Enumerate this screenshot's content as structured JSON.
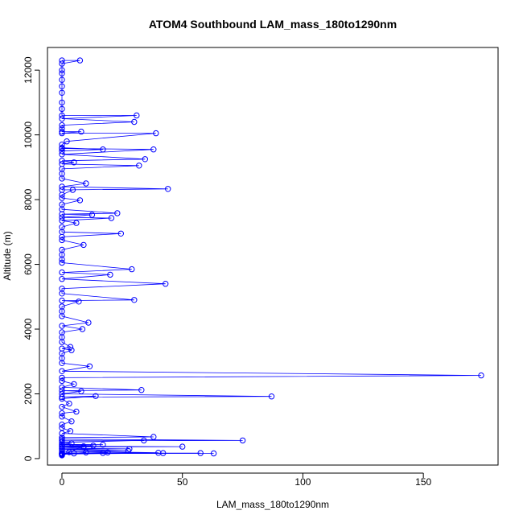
{
  "chart_data": {
    "type": "line",
    "title": "ATOM4 Southbound LAM_mass_180to1290nm",
    "xlabel": "LAM_mass_180to1290nm",
    "ylabel": "Altitude (m)",
    "xlim": [
      -6,
      181
    ],
    "ylim": [
      -200,
      12700
    ],
    "xticks": [
      0,
      50,
      100,
      150
    ],
    "yticks": [
      0,
      2000,
      4000,
      6000,
      8000,
      10000,
      12000
    ],
    "grid": false,
    "marker": "open-circle",
    "color": "#0000ff",
    "series": [
      {
        "points": [
          [
            0,
            12300
          ],
          [
            7.5,
            12300
          ],
          [
            0,
            12200
          ],
          [
            0,
            12000
          ],
          [
            0,
            11900
          ],
          [
            0,
            11700
          ],
          [
            0,
            11500
          ],
          [
            0,
            11300
          ],
          [
            0,
            11000
          ],
          [
            0,
            10800
          ],
          [
            0,
            10600
          ],
          [
            31,
            10600
          ],
          [
            0,
            10500
          ],
          [
            30,
            10400
          ],
          [
            0,
            10300
          ],
          [
            0,
            10200
          ],
          [
            0,
            10100
          ],
          [
            8,
            10100
          ],
          [
            0,
            10050
          ],
          [
            39,
            10050
          ],
          [
            2,
            9800
          ],
          [
            0,
            9700
          ],
          [
            0,
            9600
          ],
          [
            17,
            9550
          ],
          [
            0,
            9500
          ],
          [
            0,
            9580
          ],
          [
            38,
            9550
          ],
          [
            0,
            9400
          ],
          [
            34.5,
            9250
          ],
          [
            0,
            9200
          ],
          [
            5,
            9150
          ],
          [
            0,
            9100
          ],
          [
            32,
            9050
          ],
          [
            0,
            8950
          ],
          [
            0,
            8800
          ],
          [
            0,
            8650
          ],
          [
            10,
            8500
          ],
          [
            0,
            8400
          ],
          [
            44,
            8330
          ],
          [
            0,
            8300
          ],
          [
            4.5,
            8300
          ],
          [
            0,
            8150
          ],
          [
            0,
            8050
          ],
          [
            7.5,
            7980
          ],
          [
            0,
            7850
          ],
          [
            0,
            7700
          ],
          [
            23,
            7580
          ],
          [
            0,
            7550
          ],
          [
            12.5,
            7530
          ],
          [
            0,
            7450
          ],
          [
            20.5,
            7430
          ],
          [
            0,
            7350
          ],
          [
            6,
            7280
          ],
          [
            0,
            7150
          ],
          [
            0,
            7000
          ],
          [
            24.5,
            6950
          ],
          [
            0,
            6850
          ],
          [
            0,
            6750
          ],
          [
            9,
            6600
          ],
          [
            0,
            6450
          ],
          [
            0,
            6300
          ],
          [
            0,
            6150
          ],
          [
            0,
            6050
          ],
          [
            29,
            5850
          ],
          [
            0,
            5750
          ],
          [
            20,
            5680
          ],
          [
            0,
            5550
          ],
          [
            43,
            5400
          ],
          [
            0,
            5250
          ],
          [
            0,
            5100
          ],
          [
            30,
            4900
          ],
          [
            0,
            4880
          ],
          [
            7,
            4850
          ],
          [
            0,
            4700
          ],
          [
            0,
            4550
          ],
          [
            0,
            4400
          ],
          [
            11,
            4200
          ],
          [
            0,
            4100
          ],
          [
            8.5,
            4000
          ],
          [
            0,
            3900
          ],
          [
            0,
            3750
          ],
          [
            0,
            3600
          ],
          [
            3.5,
            3450
          ],
          [
            0,
            3400
          ],
          [
            4,
            3350
          ],
          [
            0,
            3250
          ],
          [
            0,
            3100
          ],
          [
            0,
            2950
          ],
          [
            11.5,
            2850
          ],
          [
            0,
            2700
          ],
          [
            174,
            2570
          ],
          [
            0,
            2500
          ],
          [
            0,
            2400
          ],
          [
            5,
            2300
          ],
          [
            0,
            2200
          ],
          [
            33,
            2120
          ],
          [
            0,
            2100
          ],
          [
            8,
            2080
          ],
          [
            0,
            2000
          ],
          [
            87,
            1920
          ],
          [
            0,
            1900
          ],
          [
            14,
            1930
          ],
          [
            0,
            1850
          ],
          [
            3,
            1700
          ],
          [
            0,
            1600
          ],
          [
            6,
            1450
          ],
          [
            0,
            1400
          ],
          [
            0,
            1300
          ],
          [
            4,
            1150
          ],
          [
            0,
            1050
          ],
          [
            0,
            950
          ],
          [
            3.5,
            850
          ],
          [
            0,
            780
          ],
          [
            38,
            670
          ],
          [
            0,
            650
          ],
          [
            0,
            600
          ],
          [
            75,
            560
          ],
          [
            0,
            550
          ],
          [
            34,
            560
          ],
          [
            0,
            500
          ],
          [
            4,
            470
          ],
          [
            0,
            440
          ],
          [
            17,
            430
          ],
          [
            0,
            420
          ],
          [
            13,
            400
          ],
          [
            0,
            380
          ],
          [
            50,
            370
          ],
          [
            0,
            360
          ],
          [
            9,
            350
          ],
          [
            0,
            320
          ],
          [
            28,
            300
          ],
          [
            0,
            290
          ],
          [
            27.5,
            240
          ],
          [
            0,
            230
          ],
          [
            40,
            180
          ],
          [
            0,
            175
          ],
          [
            57.5,
            170
          ],
          [
            0,
            165
          ],
          [
            63,
            160
          ],
          [
            0,
            155
          ],
          [
            19,
            190
          ],
          [
            0,
            150
          ],
          [
            17,
            175
          ],
          [
            0,
            145
          ],
          [
            42,
            170
          ],
          [
            0,
            140
          ],
          [
            10,
            190
          ],
          [
            0,
            130
          ],
          [
            5,
            160
          ],
          [
            0,
            120
          ],
          [
            3,
            200
          ],
          [
            0,
            110
          ],
          [
            9,
            380
          ],
          [
            0,
            100
          ]
        ]
      }
    ]
  }
}
